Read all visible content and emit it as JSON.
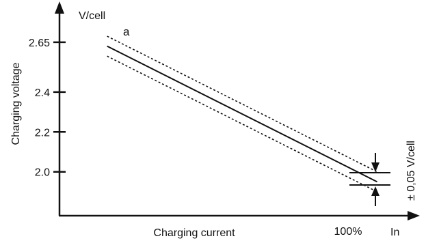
{
  "chart_data": {
    "type": "line",
    "xlabel": "Charging current",
    "ylabel": "Charging voltage",
    "x_unit": "In",
    "y_unit": "V/cell",
    "x_tick_labels": [
      "100%"
    ],
    "y_tick_labels": [
      "2.65",
      "2.4",
      "2.2",
      "2.0"
    ],
    "y_ticks": [
      2.65,
      2.4,
      2.2,
      2.0
    ],
    "xlim": [
      0,
      1.1
    ],
    "ylim": [
      1.78,
      2.8
    ],
    "grid": false,
    "series": [
      {
        "name": "a",
        "x": [
          0.15,
          1.0
        ],
        "y": [
          2.63,
          1.95
        ],
        "tolerance": 0.05
      }
    ],
    "annotations": {
      "curve_label": "a",
      "tolerance_label": "± 0,05 V/cell"
    },
    "colors": {
      "line": "#111111",
      "background": "#ffffff"
    }
  }
}
